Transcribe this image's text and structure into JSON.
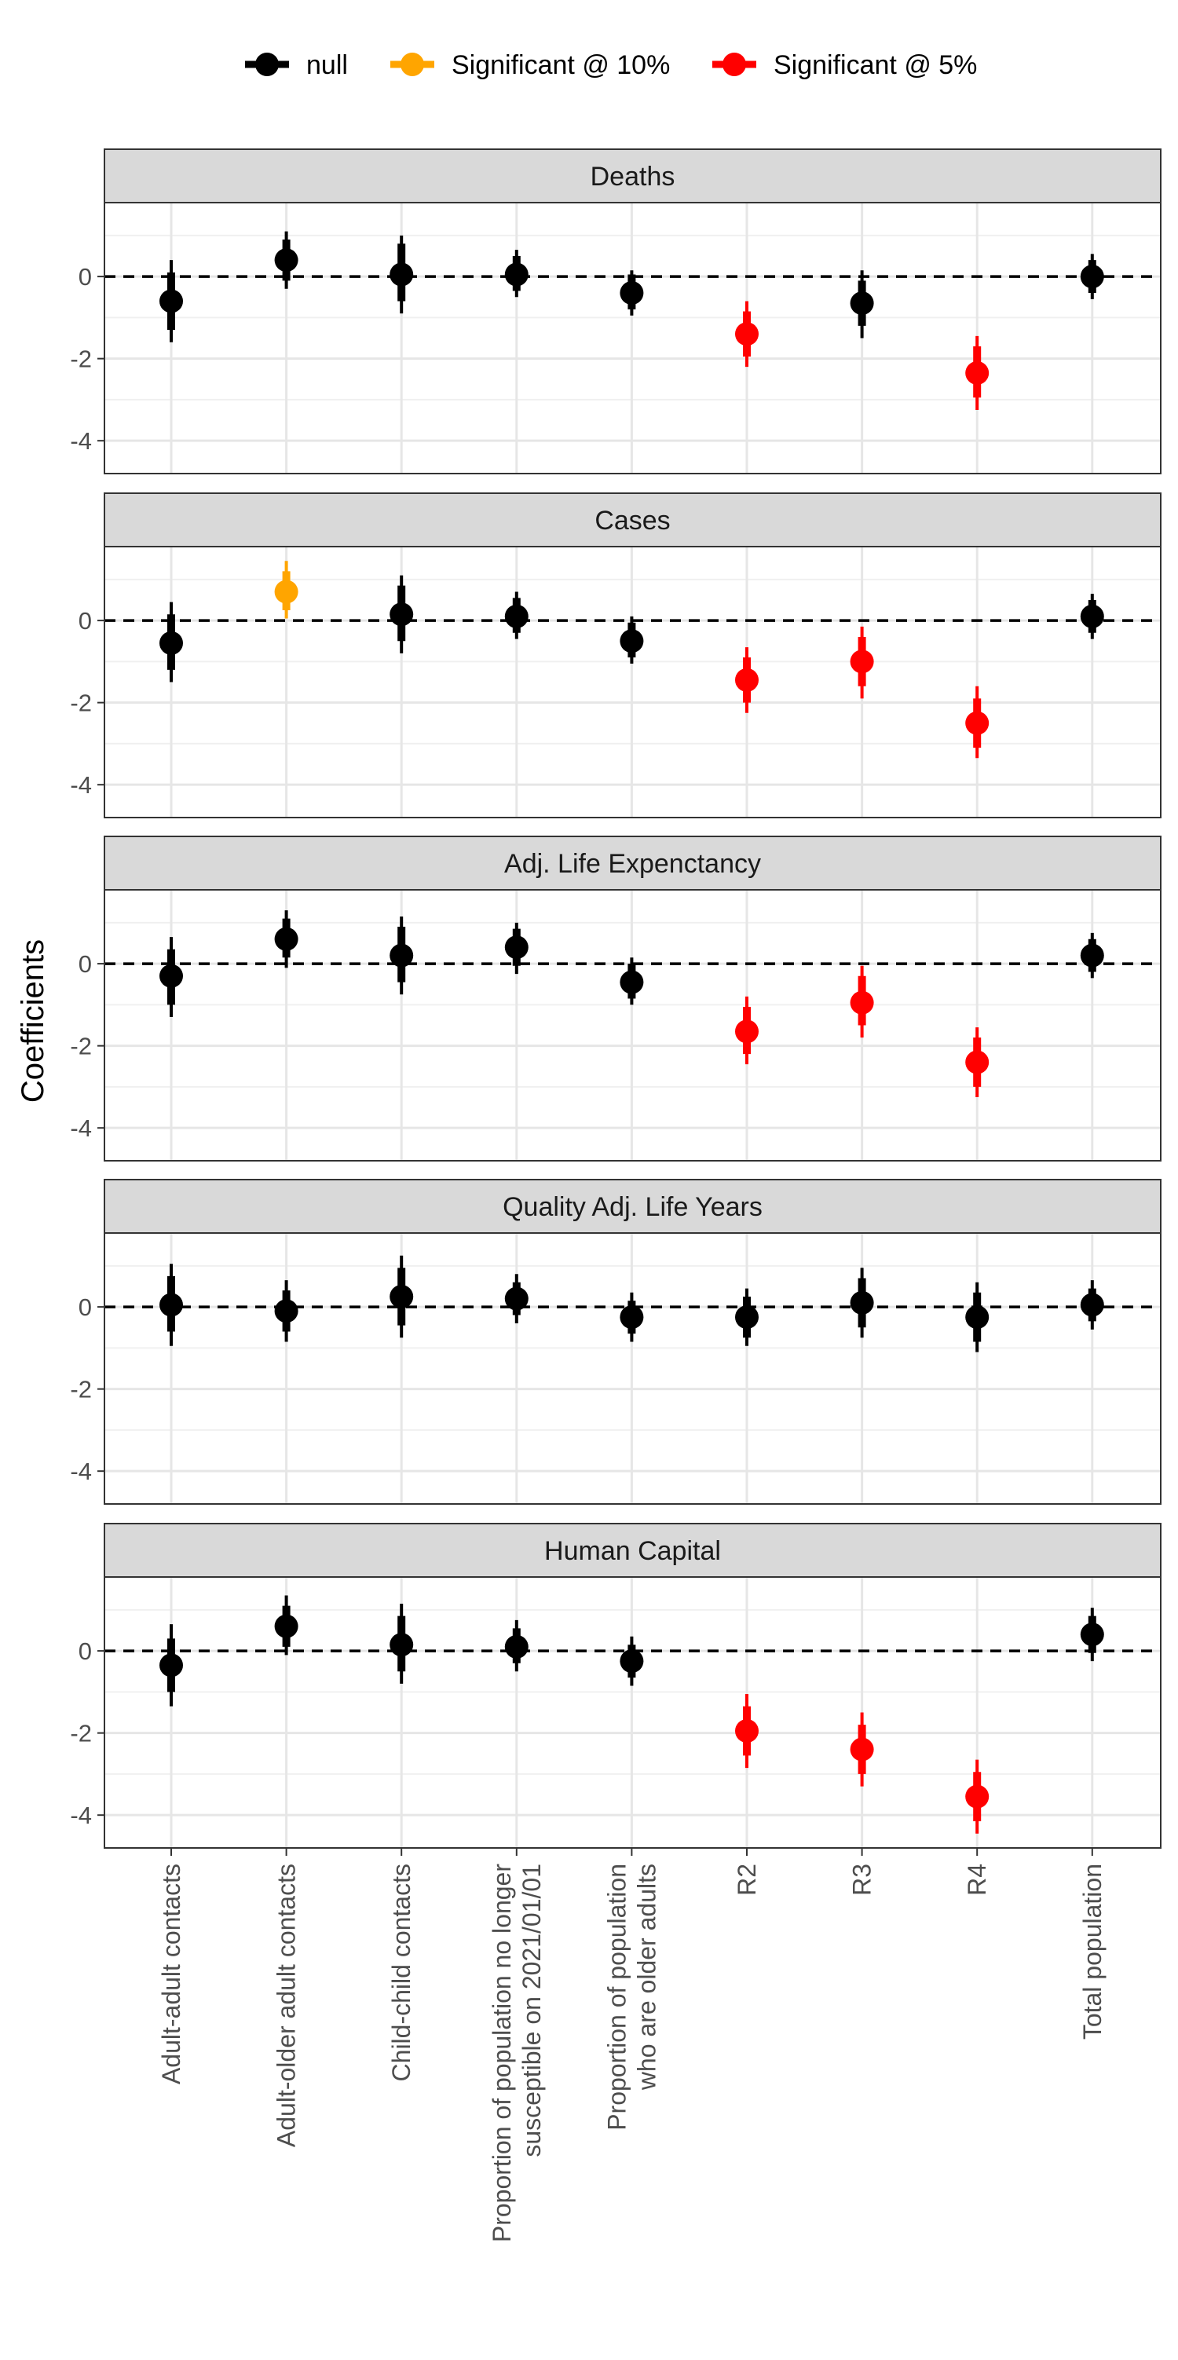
{
  "legend": {
    "items": [
      {
        "label": "null",
        "color": "#000000"
      },
      {
        "label": "Significant @ 10%",
        "color": "#FFA500"
      },
      {
        "label": "Significant @ 5%",
        "color": "#FF0000"
      }
    ]
  },
  "ylabel": "Coefficients",
  "chart_data": {
    "type": "scatter",
    "subtype": "faceted coefficient plot with confidence intervals",
    "ylabel": "Coefficients",
    "ylim": [
      -4.8,
      1.8
    ],
    "yticks": [
      0,
      -2,
      -4
    ],
    "reference_line": 0,
    "grid": true,
    "legend_position": "top",
    "categories": [
      "Adult-adult contacts",
      "Adult-older adult contacts",
      "Child-child contacts",
      "Proportion of population no longer susceptible on 2021/01/01",
      "Proportion of population who are older adults",
      "R2",
      "R3",
      "R4",
      "Total population"
    ],
    "category_tick_lines": [
      [
        "Adult-adult contacts"
      ],
      [
        "Adult-older adult contacts"
      ],
      [
        "Child-child contacts"
      ],
      [
        "Proportion of population no longer",
        "susceptible on 2021/01/01"
      ],
      [
        "Proportion of population",
        "who are older adults"
      ],
      [
        "R2"
      ],
      [
        "R3"
      ],
      [
        "R4"
      ],
      [
        "Total population"
      ]
    ],
    "significance_colors": {
      "null": "#000000",
      "10%": "#FFA500",
      "5%": "#FF0000"
    },
    "panels": [
      {
        "title": "Deaths",
        "estimates": [
          -0.6,
          0.4,
          0.05,
          0.05,
          -0.4,
          -1.4,
          -0.65,
          -2.35,
          0.0
        ],
        "inner_ci": [
          [
            -1.3,
            0.1
          ],
          [
            -0.1,
            0.9
          ],
          [
            -0.6,
            0.8
          ],
          [
            -0.35,
            0.5
          ],
          [
            -0.8,
            0.05
          ],
          [
            -1.95,
            -0.85
          ],
          [
            -1.2,
            -0.1
          ],
          [
            -2.95,
            -1.7
          ],
          [
            -0.4,
            0.4
          ]
        ],
        "outer_ci": [
          [
            -1.6,
            0.4
          ],
          [
            -0.3,
            1.1
          ],
          [
            -0.9,
            1.0
          ],
          [
            -0.5,
            0.65
          ],
          [
            -0.95,
            0.15
          ],
          [
            -2.2,
            -0.6
          ],
          [
            -1.5,
            0.15
          ],
          [
            -3.25,
            -1.45
          ],
          [
            -0.55,
            0.55
          ]
        ],
        "significance": [
          "null",
          "null",
          "null",
          "null",
          "null",
          "5%",
          "null",
          "5%",
          "null"
        ]
      },
      {
        "title": "Cases",
        "estimates": [
          -0.55,
          0.7,
          0.15,
          0.1,
          -0.5,
          -1.45,
          -1.0,
          -2.5,
          0.1
        ],
        "inner_ci": [
          [
            -1.2,
            0.15
          ],
          [
            0.25,
            1.2
          ],
          [
            -0.5,
            0.85
          ],
          [
            -0.3,
            0.55
          ],
          [
            -0.9,
            -0.05
          ],
          [
            -2.0,
            -0.9
          ],
          [
            -1.6,
            -0.4
          ],
          [
            -3.1,
            -1.9
          ],
          [
            -0.3,
            0.5
          ]
        ],
        "outer_ci": [
          [
            -1.5,
            0.45
          ],
          [
            0.05,
            1.45
          ],
          [
            -0.8,
            1.1
          ],
          [
            -0.45,
            0.7
          ],
          [
            -1.05,
            0.1
          ],
          [
            -2.25,
            -0.65
          ],
          [
            -1.9,
            -0.15
          ],
          [
            -3.35,
            -1.6
          ],
          [
            -0.45,
            0.65
          ]
        ],
        "significance": [
          "null",
          "10%",
          "null",
          "null",
          "null",
          "5%",
          "5%",
          "5%",
          "null"
        ]
      },
      {
        "title": "Adj. Life Expenctancy",
        "estimates": [
          -0.3,
          0.6,
          0.2,
          0.4,
          -0.45,
          -1.65,
          -0.95,
          -2.4,
          0.2
        ],
        "inner_ci": [
          [
            -1.0,
            0.35
          ],
          [
            0.15,
            1.1
          ],
          [
            -0.45,
            0.9
          ],
          [
            -0.05,
            0.85
          ],
          [
            -0.85,
            0.0
          ],
          [
            -2.2,
            -1.05
          ],
          [
            -1.5,
            -0.3
          ],
          [
            -3.0,
            -1.8
          ],
          [
            -0.2,
            0.6
          ]
        ],
        "outer_ci": [
          [
            -1.3,
            0.65
          ],
          [
            -0.1,
            1.3
          ],
          [
            -0.75,
            1.15
          ],
          [
            -0.25,
            1.0
          ],
          [
            -1.0,
            0.15
          ],
          [
            -2.45,
            -0.8
          ],
          [
            -1.8,
            -0.05
          ],
          [
            -3.25,
            -1.55
          ],
          [
            -0.35,
            0.75
          ]
        ],
        "significance": [
          "null",
          "null",
          "null",
          "null",
          "null",
          "5%",
          "5%",
          "5%",
          "null"
        ]
      },
      {
        "title": "Quality Adj. Life Years",
        "estimates": [
          0.05,
          -0.1,
          0.25,
          0.2,
          -0.25,
          -0.25,
          0.1,
          -0.25,
          0.05
        ],
        "inner_ci": [
          [
            -0.6,
            0.75
          ],
          [
            -0.6,
            0.4
          ],
          [
            -0.45,
            0.95
          ],
          [
            -0.2,
            0.6
          ],
          [
            -0.65,
            0.15
          ],
          [
            -0.75,
            0.25
          ],
          [
            -0.5,
            0.7
          ],
          [
            -0.85,
            0.35
          ],
          [
            -0.35,
            0.45
          ]
        ],
        "outer_ci": [
          [
            -0.95,
            1.05
          ],
          [
            -0.85,
            0.65
          ],
          [
            -0.75,
            1.25
          ],
          [
            -0.4,
            0.8
          ],
          [
            -0.85,
            0.35
          ],
          [
            -0.95,
            0.45
          ],
          [
            -0.75,
            0.95
          ],
          [
            -1.1,
            0.6
          ],
          [
            -0.55,
            0.65
          ]
        ],
        "significance": [
          "null",
          "null",
          "null",
          "null",
          "null",
          "null",
          "null",
          "null",
          "null"
        ]
      },
      {
        "title": "Human Capital",
        "estimates": [
          -0.35,
          0.6,
          0.15,
          0.1,
          -0.25,
          -1.95,
          -2.4,
          -3.55,
          0.4
        ],
        "inner_ci": [
          [
            -1.0,
            0.3
          ],
          [
            0.1,
            1.1
          ],
          [
            -0.5,
            0.85
          ],
          [
            -0.3,
            0.55
          ],
          [
            -0.65,
            0.15
          ],
          [
            -2.55,
            -1.35
          ],
          [
            -3.0,
            -1.8
          ],
          [
            -4.15,
            -2.95
          ],
          [
            -0.05,
            0.85
          ]
        ],
        "outer_ci": [
          [
            -1.35,
            0.65
          ],
          [
            -0.1,
            1.35
          ],
          [
            -0.8,
            1.15
          ],
          [
            -0.5,
            0.75
          ],
          [
            -0.85,
            0.35
          ],
          [
            -2.85,
            -1.05
          ],
          [
            -3.3,
            -1.5
          ],
          [
            -4.45,
            -2.65
          ],
          [
            -0.25,
            1.05
          ]
        ],
        "significance": [
          "null",
          "null",
          "null",
          "null",
          "null",
          "5%",
          "5%",
          "5%",
          "null"
        ]
      }
    ]
  }
}
